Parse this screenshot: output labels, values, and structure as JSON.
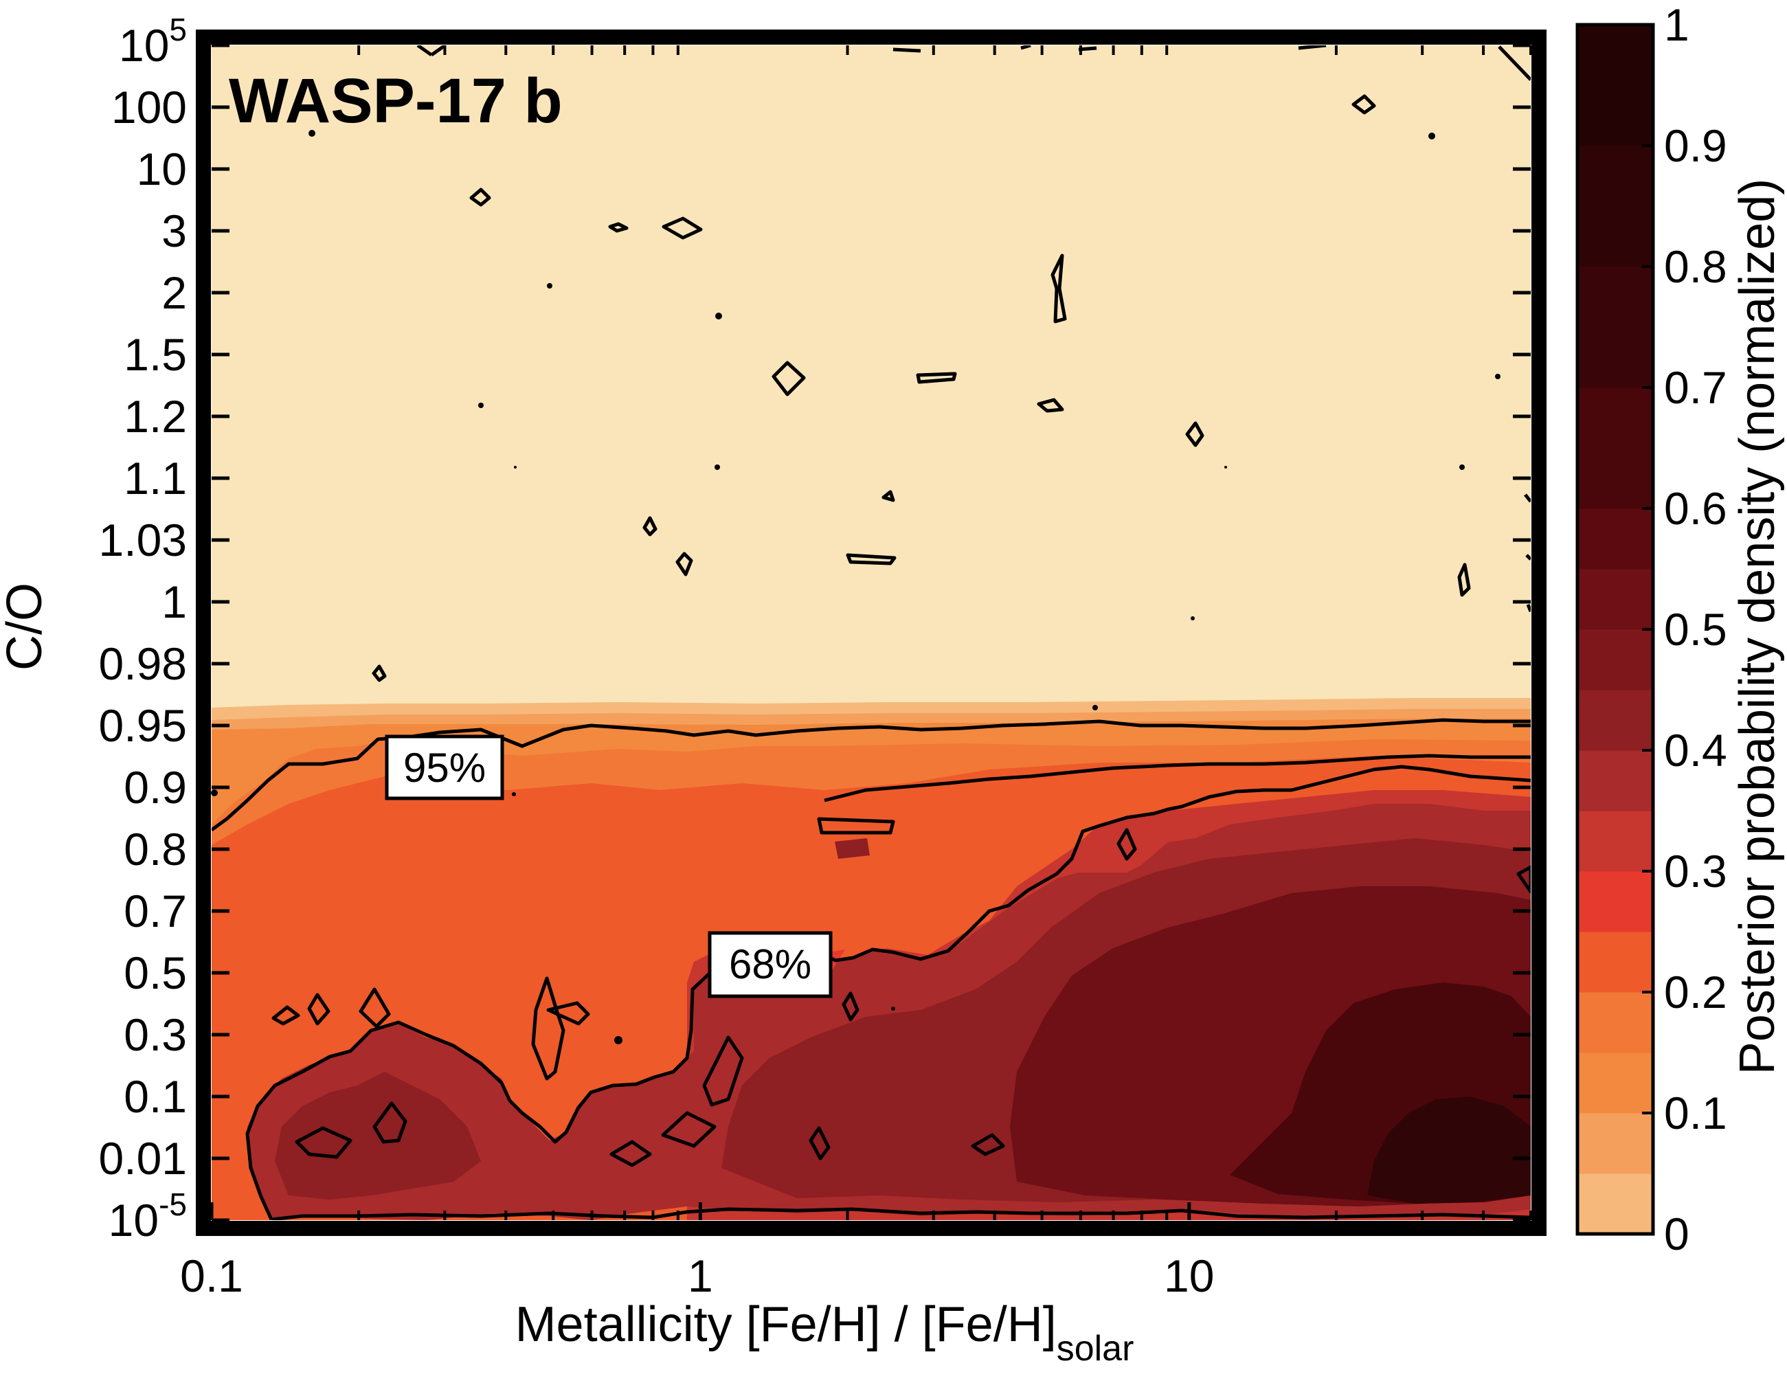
{
  "chart_data": {
    "type": "heatmap",
    "title": "WASP-17 b",
    "xlabel": "Metallicity [Fe/H] / [Fe/H]",
    "xlabel_subscript": "solar",
    "ylabel": "C/O",
    "x_scale": "log",
    "xlim": [
      0.1,
      50
    ],
    "x_ticks": [
      {
        "value": 0.1,
        "label": "0.1"
      },
      {
        "value": 1,
        "label": "1"
      },
      {
        "value": 10,
        "label": "10"
      }
    ],
    "y_ticks": [
      {
        "label": "10",
        "sup": "-5"
      },
      {
        "label": "0.01"
      },
      {
        "label": "0.1"
      },
      {
        "label": "0.3"
      },
      {
        "label": "0.5"
      },
      {
        "label": "0.7"
      },
      {
        "label": "0.8"
      },
      {
        "label": "0.9"
      },
      {
        "label": "0.95"
      },
      {
        "label": "0.98"
      },
      {
        "label": "1"
      },
      {
        "label": "1.03"
      },
      {
        "label": "1.1"
      },
      {
        "label": "1.2"
      },
      {
        "label": "1.5"
      },
      {
        "label": "2"
      },
      {
        "label": "3"
      },
      {
        "label": "10"
      },
      {
        "label": "100"
      },
      {
        "label": "10",
        "sup": "5"
      }
    ],
    "colorbar": {
      "label": "Posterior probability density (normalized)",
      "range": [
        0,
        1
      ],
      "ticks": [
        "0",
        "0.1",
        "0.2",
        "0.3",
        "0.4",
        "0.5",
        "0.6",
        "0.7",
        "0.8",
        "0.9",
        "1"
      ],
      "levels": [
        0,
        0.05,
        0.1,
        0.15,
        0.2,
        0.25,
        0.3,
        0.35,
        0.4,
        0.45,
        0.5,
        0.55,
        0.6,
        0.7,
        0.8,
        0.9,
        1.0
      ],
      "colors": [
        "#f6b97b",
        "#f4a05c",
        "#f2893e",
        "#f27838",
        "#ee5a2a",
        "#e73a2f",
        "#c7362f",
        "#a92b2b",
        "#8e1f22",
        "#7d171c",
        "#6e1016",
        "#5c0a10",
        "#4a070b",
        "#3a0508",
        "#2f0406",
        "#240304"
      ]
    },
    "background_color": "#f9e5b9",
    "contour_levels": [
      "95%",
      "68%"
    ],
    "grid": false
  }
}
